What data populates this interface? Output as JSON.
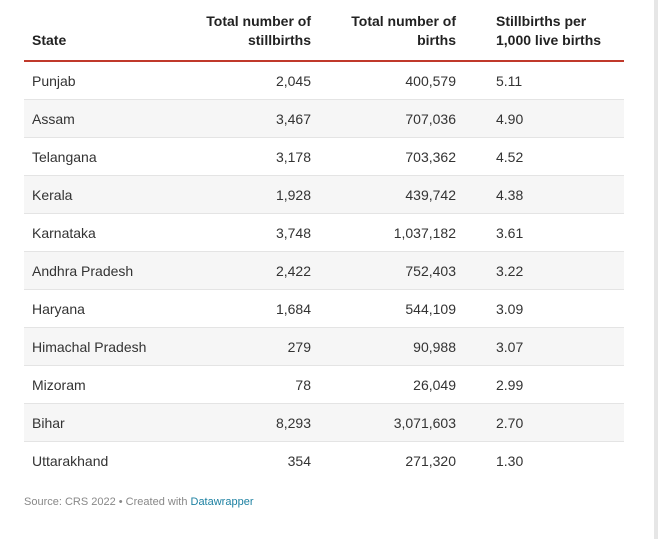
{
  "table": {
    "headers": {
      "state": "State",
      "stillbirths_line1": "Total number of",
      "stillbirths_line2": "stillbirths",
      "births_line1": "Total number of",
      "births_line2": "births",
      "rate_line1": "Stillbirths per",
      "rate_line2": "1,000 live births"
    },
    "rows": [
      {
        "state": "Punjab",
        "stillbirths": "2,045",
        "births": "400,579",
        "rate": "5.11"
      },
      {
        "state": "Assam",
        "stillbirths": "3,467",
        "births": "707,036",
        "rate": "4.90"
      },
      {
        "state": "Telangana",
        "stillbirths": "3,178",
        "births": "703,362",
        "rate": "4.52"
      },
      {
        "state": "Kerala",
        "stillbirths": "1,928",
        "births": "439,742",
        "rate": "4.38"
      },
      {
        "state": "Karnataka",
        "stillbirths": "3,748",
        "births": "1,037,182",
        "rate": "3.61"
      },
      {
        "state": "Andhra Pradesh",
        "stillbirths": "2,422",
        "births": "752,403",
        "rate": "3.22"
      },
      {
        "state": "Haryana",
        "stillbirths": "1,684",
        "births": "544,109",
        "rate": "3.09"
      },
      {
        "state": "Himachal Pradesh",
        "stillbirths": "279",
        "births": "90,988",
        "rate": "3.07"
      },
      {
        "state": "Mizoram",
        "stillbirths": "78",
        "births": "26,049",
        "rate": "2.99"
      },
      {
        "state": "Bihar",
        "stillbirths": "8,293",
        "births": "3,071,603",
        "rate": "2.70"
      },
      {
        "state": "Uttarakhand",
        "stillbirths": "354",
        "births": "271,320",
        "rate": "1.30"
      }
    ]
  },
  "footer": {
    "source_text": "Source: CRS 2022 • Created with ",
    "link_label": "Datawrapper"
  },
  "colors": {
    "header_rule": "#c0392b",
    "link": "#1d81a2",
    "stripe": "#f6f6f6"
  }
}
